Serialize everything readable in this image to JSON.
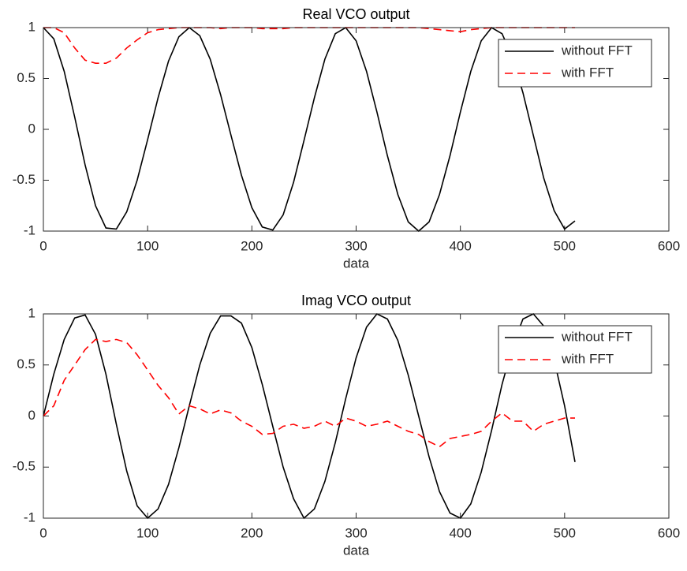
{
  "chart_data": [
    {
      "type": "line",
      "title": "Real VCO output",
      "x_label": "data",
      "x": [
        0,
        10,
        20,
        30,
        40,
        50,
        60,
        70,
        80,
        90,
        100,
        110,
        120,
        130,
        140,
        150,
        160,
        170,
        180,
        190,
        200,
        210,
        220,
        230,
        240,
        250,
        260,
        270,
        280,
        290,
        300,
        310,
        320,
        330,
        340,
        350,
        360,
        370,
        380,
        390,
        400,
        410,
        420,
        430,
        440,
        450,
        460,
        470,
        480,
        490,
        500,
        510
      ],
      "series": [
        {
          "name": "without FFT",
          "color": "#000000",
          "dash": "solid",
          "values": [
            1,
            0.89,
            0.57,
            0.12,
            -0.35,
            -0.75,
            -0.97,
            -0.98,
            -0.81,
            -0.5,
            -0.1,
            0.31,
            0.67,
            0.91,
            1,
            0.92,
            0.69,
            0.34,
            -0.06,
            -0.45,
            -0.77,
            -0.96,
            -0.99,
            -0.84,
            -0.52,
            -0.11,
            0.31,
            0.69,
            0.94,
            1,
            0.87,
            0.57,
            0.17,
            -0.26,
            -0.64,
            -0.91,
            -1,
            -0.91,
            -0.64,
            -0.26,
            0.17,
            0.57,
            0.87,
            1,
            0.94,
            0.71,
            0.36,
            -0.06,
            -0.48,
            -0.8,
            -0.98,
            -0.9
          ]
        },
        {
          "name": "with FFT",
          "color": "#ff0000",
          "dash": "dashed",
          "values": [
            1,
            1,
            0.95,
            0.8,
            0.68,
            0.65,
            0.65,
            0.7,
            0.8,
            0.88,
            0.95,
            0.98,
            0.99,
            1,
            1,
            1,
            1,
            0.99,
            1,
            1,
            1,
            0.99,
            0.99,
            0.99,
            1,
            1,
            1,
            1,
            1,
            1,
            1,
            1,
            1,
            1,
            1,
            1,
            1,
            0.99,
            0.98,
            0.97,
            0.96,
            0.98,
            0.99,
            1,
            1,
            1,
            1,
            1,
            1,
            1,
            1,
            1
          ]
        }
      ],
      "xlim": [
        0,
        600
      ],
      "xticks": [
        0,
        100,
        200,
        300,
        400,
        500,
        600
      ],
      "ylim": [
        -1,
        1
      ],
      "yticks": [
        -1,
        -0.5,
        0,
        0.5,
        1
      ],
      "legend": "northeast"
    },
    {
      "type": "line",
      "title": "Imag VCO output",
      "x_label": "data",
      "x": [
        0,
        10,
        20,
        30,
        40,
        50,
        60,
        70,
        80,
        90,
        100,
        110,
        120,
        130,
        140,
        150,
        160,
        170,
        180,
        190,
        200,
        210,
        220,
        230,
        240,
        250,
        260,
        270,
        280,
        290,
        300,
        310,
        320,
        330,
        340,
        350,
        360,
        370,
        380,
        390,
        400,
        410,
        420,
        430,
        440,
        450,
        460,
        470,
        480,
        490,
        500,
        510
      ],
      "series": [
        {
          "name": "without FFT",
          "color": "#000000",
          "dash": "solid",
          "values": [
            0,
            0.41,
            0.75,
            0.96,
            0.99,
            0.8,
            0.41,
            -0.08,
            -0.54,
            -0.88,
            -1,
            -0.91,
            -0.67,
            -0.31,
            0.1,
            0.5,
            0.81,
            0.98,
            0.98,
            0.91,
            0.67,
            0.31,
            -0.1,
            -0.5,
            -0.81,
            -1,
            -0.91,
            -0.64,
            -0.26,
            0.17,
            0.57,
            0.87,
            1,
            0.95,
            0.74,
            0.4,
            0,
            -0.4,
            -0.74,
            -0.95,
            -1,
            -0.86,
            -0.55,
            -0.14,
            0.31,
            0.68,
            0.95,
            1,
            0.88,
            0.55,
            0.1,
            -0.45
          ]
        },
        {
          "name": "with FFT",
          "color": "#ff0000",
          "dash": "dashed",
          "values": [
            0,
            0.1,
            0.35,
            0.5,
            0.65,
            0.75,
            0.73,
            0.75,
            0.72,
            0.6,
            0.45,
            0.3,
            0.18,
            0.02,
            0.1,
            0.07,
            0.02,
            0.06,
            0.03,
            -0.05,
            -0.1,
            -0.18,
            -0.17,
            -0.1,
            -0.08,
            -0.12,
            -0.1,
            -0.05,
            -0.1,
            -0.02,
            -0.05,
            -0.1,
            -0.08,
            -0.05,
            -0.1,
            -0.15,
            -0.18,
            -0.25,
            -0.3,
            -0.22,
            -0.2,
            -0.18,
            -0.15,
            -0.05,
            0.03,
            -0.05,
            -0.05,
            -0.15,
            -0.08,
            -0.05,
            -0.02,
            -0.02
          ]
        }
      ],
      "xlim": [
        0,
        600
      ],
      "xticks": [
        0,
        100,
        200,
        300,
        400,
        500,
        600
      ],
      "ylim": [
        -1,
        1
      ],
      "yticks": [
        -1,
        -0.5,
        0,
        0.5,
        1
      ],
      "legend": "northeast"
    }
  ]
}
